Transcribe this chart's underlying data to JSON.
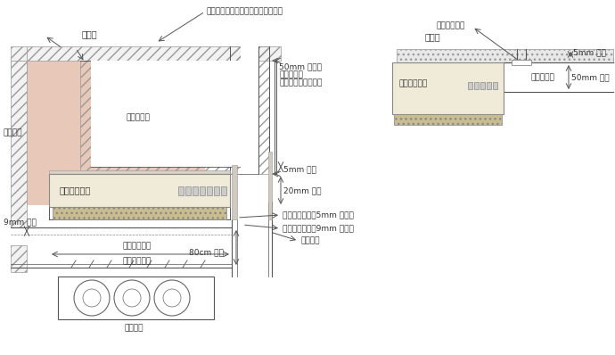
{
  "bg_color": "#ffffff",
  "hatch_fc": "#f2f2f2",
  "hatch_ec": "#999999",
  "hood_fill": "#f0ead8",
  "comb_fill": "#e8c8b8",
  "insul_fill": "#e8c8b8",
  "line_color": "#555555",
  "text_color": "#333333",
  "fs": 6.5,
  "fs_label": 7.0,
  "labels": {
    "tenjo": "天　井",
    "kanenbutsu_top": "可燃物が接触するおそれのある部分",
    "kanenbutsu_left": "可燃材料",
    "haikidakuto": "排気ダクト",
    "renjifudo": "レンジフード",
    "nensho": "燃焼設備",
    "mm50_label": "50mm 以上の",
    "shatsu": "しゃ熱材料",
    "rokku": "（ロックウール等）",
    "mm5": "5mm 以上",
    "mm20": "20mm 以上",
    "toku5": "特定不燃材料（5mm 以上）",
    "toku9": "特定不燃材料（9mm 以上）",
    "hi_label1": "火を使用する",
    "hi_label2": "設備の幅以上",
    "mm9": "9mm 以上",
    "cm80": "80cm 以上",
    "kanenbutsu_low": "可燃材料",
    "r_tenjo": "天　井",
    "r_toku": "特定不燃材料",
    "r_5mm": "5mm 以上",
    "r_50mm": "50mm 以上",
    "r_duct": "排気ダクト",
    "r_hood": "レンジフード"
  }
}
